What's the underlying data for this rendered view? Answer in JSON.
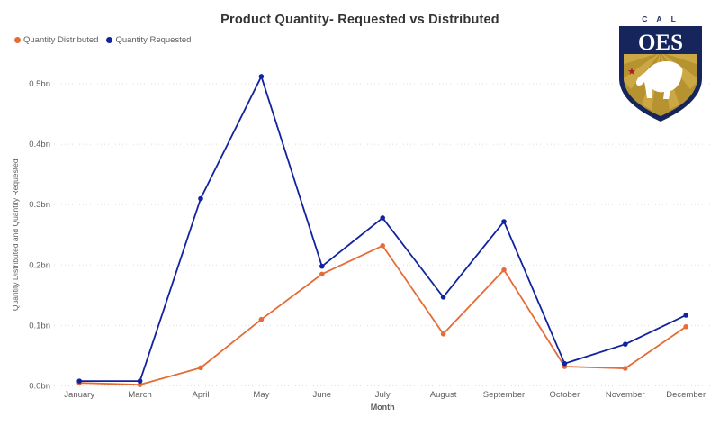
{
  "title": "Product Quantity- Requested vs Distributed",
  "logo": {
    "top_text": "C A L",
    "main_text": "OES",
    "shield_navy": "#16265C",
    "shield_gold": "#B69330",
    "ray_gold": "#CBA843",
    "star_red": "#A91E24",
    "bear_color": "#FFFFFF"
  },
  "chart_data": {
    "type": "line",
    "title": "Product Quantity- Requested vs Distributed",
    "xlabel": "Month",
    "ylabel": "Quantity Distributed and Quantity Requested",
    "categories": [
      "January",
      "March",
      "April",
      "May",
      "June",
      "July",
      "August",
      "September",
      "October",
      "November",
      "December"
    ],
    "y_ticks": [
      {
        "value": 0.0,
        "label": "0.0bn"
      },
      {
        "value": 0.1,
        "label": "0.1bn"
      },
      {
        "value": 0.2,
        "label": "0.2bn"
      },
      {
        "value": 0.3,
        "label": "0.3bn"
      },
      {
        "value": 0.4,
        "label": "0.4bn"
      },
      {
        "value": 0.5,
        "label": "0.5bn"
      }
    ],
    "unit": "bn",
    "ylim": [
      0,
      0.52
    ],
    "grid": "horizontal-dotted",
    "legend_position": "top-left",
    "series": [
      {
        "name": "Quantity Distributed",
        "color": "#E66C37",
        "values": [
          0.005,
          0.002,
          0.03,
          0.11,
          0.185,
          0.232,
          0.086,
          0.192,
          0.032,
          0.029,
          0.098
        ]
      },
      {
        "name": "Quantity Requested",
        "color": "#12239E",
        "values": [
          0.008,
          0.008,
          0.31,
          0.512,
          0.198,
          0.278,
          0.147,
          0.272,
          0.037,
          0.069,
          0.117
        ]
      }
    ],
    "axis_text_color": "#605E5C",
    "gridline_color": "#DCDCDC"
  }
}
